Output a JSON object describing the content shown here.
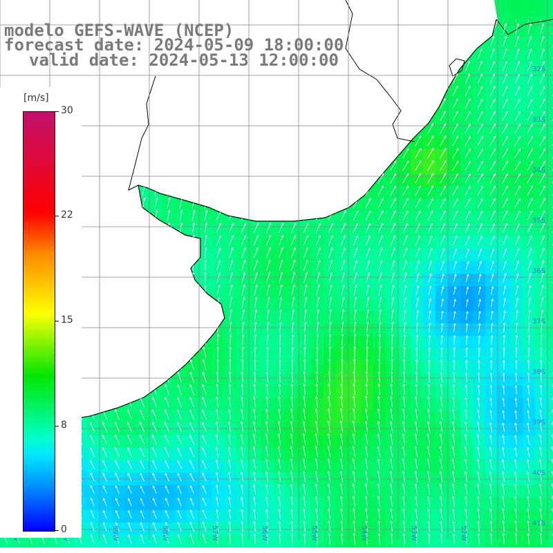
{
  "title": {
    "line1": "modelo GEFS-WAVE (NCEP)",
    "line2": "forecast date: 2024-05-09 18:00:00",
    "line3": "valid date: 2024-05-13 12:00:00"
  },
  "colorbar": {
    "units": "[m/s]",
    "ticks": [
      "30",
      "22",
      "15",
      "8",
      "0"
    ],
    "tick_values": [
      30,
      22,
      15,
      8,
      0
    ],
    "range": [
      0,
      30
    ],
    "colors": [
      "#0000ff",
      "#0088ff",
      "#00e5ff",
      "#00ffcc",
      "#00e600",
      "#ffff00",
      "#ff8a00",
      "#ff0000",
      "#c2126e"
    ]
  },
  "map": {
    "variable": "wind speed and direction",
    "lat_labels": [
      "32S",
      "33S",
      "34S",
      "35S",
      "36S",
      "37S",
      "38S",
      "39S",
      "40S",
      "41S"
    ],
    "lon_labels": [
      "61W",
      "60W",
      "59W",
      "58W",
      "57W",
      "56W",
      "55W",
      "54W",
      "53W",
      "52W"
    ],
    "land_color": "#ffffff",
    "coast_color": "#000000",
    "grid_color": "#888888",
    "arrow_color": "#ffffff",
    "wind_direction": "mostly from the south (arrows point north / north-north-east)"
  }
}
